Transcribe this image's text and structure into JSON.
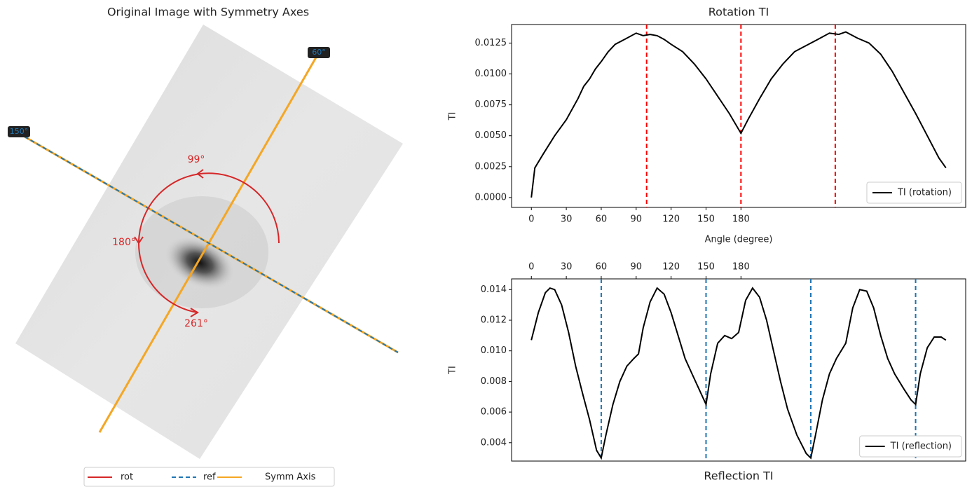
{
  "chart_data": [
    {
      "type": "image",
      "title": "Original Image with Symmetry Axes",
      "axis_labels": [
        "60°",
        "150°"
      ],
      "arc_labels": [
        "99°",
        "180°",
        "261°"
      ],
      "series": [
        {
          "name": "rot",
          "color": "#d62728"
        },
        {
          "name": "ref",
          "color": "#1f77b4"
        },
        {
          "name": "Symm Axis",
          "color": "#f5a623"
        }
      ]
    },
    {
      "type": "line",
      "title": "Rotation TI",
      "xlabel": "Angle (degree)",
      "ylabel": "TI",
      "x": [
        0,
        3,
        10,
        20,
        30,
        40,
        45,
        50,
        55,
        60,
        66,
        72,
        80,
        90,
        96,
        102,
        108,
        114,
        120,
        130,
        140,
        150,
        160,
        170,
        180,
        186,
        196,
        206,
        216,
        226,
        236,
        246,
        256,
        264,
        270,
        280,
        290,
        300,
        310,
        320,
        330,
        340,
        350,
        356
      ],
      "series": [
        {
          "name": "TI (rotation)",
          "color": "#000000",
          "values": [
            0,
            0.0024,
            0.0035,
            0.005,
            0.0063,
            0.008,
            0.009,
            0.0096,
            0.0104,
            0.011,
            0.0118,
            0.0124,
            0.0128,
            0.0133,
            0.0131,
            0.0132,
            0.0131,
            0.0128,
            0.0124,
            0.0118,
            0.0108,
            0.0096,
            0.0082,
            0.0068,
            0.0052,
            0.0063,
            0.008,
            0.0096,
            0.0108,
            0.0118,
            0.0123,
            0.0128,
            0.0133,
            0.0132,
            0.0134,
            0.0129,
            0.0125,
            0.0116,
            0.0102,
            0.0085,
            0.0068,
            0.005,
            0.0032,
            0.0024
          ]
        }
      ],
      "vlines": [
        99,
        180,
        261
      ],
      "vline_color": "#ff0000",
      "xlim": [
        -17,
        373
      ],
      "ylim": [
        -0.0008,
        0.014
      ],
      "xticks": [
        0,
        30,
        60,
        90,
        120,
        150,
        180
      ],
      "yticks": [
        {
          "value": 0,
          "label": "0.0000"
        },
        {
          "value": 0.0025,
          "label": "0.0025"
        },
        {
          "value": 0.005,
          "label": "0.0050"
        },
        {
          "value": 0.0075,
          "label": "0.0075"
        },
        {
          "value": 0.01,
          "label": "0.0100"
        },
        {
          "value": 0.0125,
          "label": "0.0125"
        }
      ],
      "xaxis_position": "bottom",
      "title_position": "top",
      "legend": "lower right"
    },
    {
      "type": "line",
      "title": "Reflection TI",
      "ylabel": "TI",
      "x": [
        0,
        6,
        12,
        16,
        20,
        26,
        32,
        38,
        44,
        50,
        56,
        60,
        64,
        70,
        76,
        82,
        88,
        92,
        96,
        102,
        108,
        114,
        120,
        126,
        132,
        138,
        144,
        150,
        154,
        160,
        166,
        172,
        178,
        184,
        190,
        196,
        202,
        208,
        214,
        220,
        228,
        236,
        240,
        244,
        250,
        256,
        262,
        270,
        276,
        282,
        288,
        294,
        300,
        306,
        312,
        320,
        326,
        330,
        334,
        340,
        346,
        352,
        356
      ],
      "series": [
        {
          "name": "TI (reflection)",
          "color": "#000000",
          "values": [
            0.0107,
            0.0125,
            0.0138,
            0.0141,
            0.014,
            0.013,
            0.0112,
            0.009,
            0.0072,
            0.0055,
            0.0035,
            0.003,
            0.0045,
            0.0065,
            0.008,
            0.009,
            0.0095,
            0.0098,
            0.0115,
            0.0132,
            0.0141,
            0.0137,
            0.0125,
            0.011,
            0.0095,
            0.0085,
            0.0075,
            0.0065,
            0.0085,
            0.0105,
            0.011,
            0.0108,
            0.0112,
            0.0133,
            0.0141,
            0.0135,
            0.012,
            0.01,
            0.008,
            0.0062,
            0.0045,
            0.0033,
            0.003,
            0.0045,
            0.0068,
            0.0085,
            0.0095,
            0.0105,
            0.0128,
            0.014,
            0.0139,
            0.0128,
            0.011,
            0.0095,
            0.0085,
            0.0075,
            0.0068,
            0.0065,
            0.0085,
            0.0102,
            0.0109,
            0.0109,
            0.0107
          ]
        }
      ],
      "vlines": [
        60,
        150,
        240,
        330
      ],
      "vline_color": "#1f77b4",
      "xlim": [
        -17,
        373
      ],
      "ylim": [
        0.0028,
        0.0147
      ],
      "xticks": [
        0,
        30,
        60,
        90,
        120,
        150,
        180
      ],
      "yticks": [
        {
          "value": 0.004,
          "label": "0.004"
        },
        {
          "value": 0.006,
          "label": "0.006"
        },
        {
          "value": 0.008,
          "label": "0.008"
        },
        {
          "value": 0.01,
          "label": "0.010"
        },
        {
          "value": 0.012,
          "label": "0.012"
        },
        {
          "value": 0.014,
          "label": "0.014"
        }
      ],
      "xaxis_position": "top",
      "title_position": "bottom",
      "legend": "lower right"
    }
  ]
}
